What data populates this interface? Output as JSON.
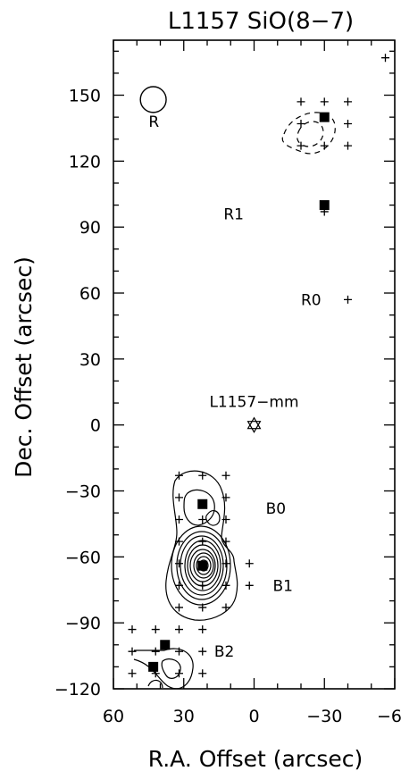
{
  "chart_data": {
    "type": "scatter",
    "title": "L1157 SiO(8−7)",
    "xlabel": "R.A. Offset (arcsec)",
    "ylabel": "Dec. Offset (arcsec)",
    "xlim": [
      60,
      -60
    ],
    "ylim": [
      -120,
      175
    ],
    "x_ticks": [
      "60",
      "30",
      "0",
      "−30",
      "−60"
    ],
    "y_ticks": [
      "−120",
      "−90",
      "−60",
      "−30",
      "0",
      "30",
      "60",
      "90",
      "120",
      "150"
    ],
    "grid": false,
    "legend": "none",
    "source": {
      "name": "L1157−mm",
      "x": 0,
      "y": 0
    },
    "regions": [
      {
        "label": "R",
        "x": 45,
        "y": 138
      },
      {
        "label": "R1",
        "x": 13,
        "y": 96
      },
      {
        "label": "R0",
        "x": -20,
        "y": 57
      },
      {
        "label": "B0",
        "x": -5,
        "y": -38
      },
      {
        "label": "B1",
        "x": -8,
        "y": -73
      },
      {
        "label": "B2",
        "x": 17,
        "y": -103
      }
    ],
    "peaks": [
      {
        "x": -30,
        "y": 140
      },
      {
        "x": -30,
        "y": 100
      },
      {
        "x": 22,
        "y": -36
      },
      {
        "x": 22,
        "y": -64
      },
      {
        "x": 38,
        "y": -100
      },
      {
        "x": 43,
        "y": -110
      }
    ],
    "observed_positions": [
      {
        "x": -56,
        "y": 167
      },
      {
        "x": -20,
        "y": 147
      },
      {
        "x": -30,
        "y": 147
      },
      {
        "x": -40,
        "y": 147
      },
      {
        "x": -20,
        "y": 137
      },
      {
        "x": -40,
        "y": 137
      },
      {
        "x": -20,
        "y": 127
      },
      {
        "x": -30,
        "y": 127
      },
      {
        "x": -40,
        "y": 127
      },
      {
        "x": -30,
        "y": 97
      },
      {
        "x": -40,
        "y": 57
      },
      {
        "x": 32,
        "y": -23
      },
      {
        "x": 22,
        "y": -23
      },
      {
        "x": 12,
        "y": -23
      },
      {
        "x": 32,
        "y": -33
      },
      {
        "x": 12,
        "y": -33
      },
      {
        "x": 32,
        "y": -43
      },
      {
        "x": 22,
        "y": -43
      },
      {
        "x": 12,
        "y": -43
      },
      {
        "x": 32,
        "y": -53
      },
      {
        "x": 22,
        "y": -53
      },
      {
        "x": 12,
        "y": -53
      },
      {
        "x": 32,
        "y": -63
      },
      {
        "x": 12,
        "y": -63
      },
      {
        "x": 2,
        "y": -63
      },
      {
        "x": 32,
        "y": -73
      },
      {
        "x": 22,
        "y": -73
      },
      {
        "x": 12,
        "y": -73
      },
      {
        "x": 2,
        "y": -73
      },
      {
        "x": 32,
        "y": -83
      },
      {
        "x": 22,
        "y": -83
      },
      {
        "x": 12,
        "y": -83
      },
      {
        "x": 52,
        "y": -93
      },
      {
        "x": 42,
        "y": -93
      },
      {
        "x": 32,
        "y": -93
      },
      {
        "x": 22,
        "y": -93
      },
      {
        "x": 52,
        "y": -103
      },
      {
        "x": 42,
        "y": -103
      },
      {
        "x": 32,
        "y": -103
      },
      {
        "x": 22,
        "y": -103
      },
      {
        "x": 52,
        "y": -113
      },
      {
        "x": 42,
        "y": -113
      },
      {
        "x": 32,
        "y": -113
      },
      {
        "x": 22,
        "y": -113
      }
    ],
    "beam": {
      "x": 43,
      "y": 148,
      "diameter_arcsec": 11
    }
  }
}
